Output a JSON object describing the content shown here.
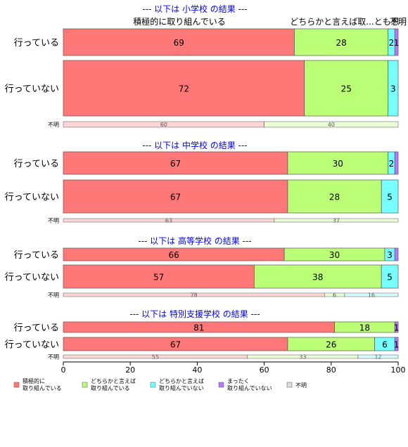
{
  "chart_data": {
    "type": "bar",
    "orientation": "horizontal",
    "stacked": true,
    "xlim": [
      0,
      100
    ],
    "x_ticks": [
      "0",
      "20",
      "40",
      "60",
      "80",
      "100"
    ],
    "top_labels": [
      {
        "text": "積極的に取り組んでいる"
      },
      {
        "text": "どちらかと言えば取...とも思"
      },
      {
        "text": "不明"
      }
    ],
    "legend_position": "bottom",
    "legend": [
      {
        "label": "積極的に\n取り組んでいる",
        "color": "#ff7777"
      },
      {
        "label": "どちらかと言えば\n取り組んでいる",
        "color": "#bbff77"
      },
      {
        "label": "どちらかと言えば\n取り組んでいない",
        "color": "#77ffff"
      },
      {
        "label": "まったく\n取り組んでいない",
        "color": "#bb77ff"
      },
      {
        "label": "不明",
        "color": "#dddddd"
      }
    ],
    "groups": [
      {
        "title": "--- 以下は 小学校 の結果 ---",
        "rows": [
          {
            "category": "行っている",
            "values": [
              69,
              28,
              2,
              1,
              0
            ],
            "labels": [
              "69",
              "28",
              "2",
              "1",
              ""
            ]
          },
          {
            "category": "行っていない",
            "values": [
              72,
              25,
              3,
              0,
              0
            ],
            "labels": [
              "72",
              "25",
              "3",
              "",
              ""
            ]
          },
          {
            "category": "不明",
            "values": [
              60,
              40,
              0,
              0,
              0
            ],
            "labels": [
              "60",
              "40",
              "",
              "",
              ""
            ]
          }
        ]
      },
      {
        "title": "--- 以下は 中学校 の結果 ---",
        "rows": [
          {
            "category": "行っている",
            "values": [
              67,
              30,
              2,
              1,
              0
            ],
            "labels": [
              "67",
              "30",
              "2",
              "",
              ""
            ]
          },
          {
            "category": "行っていない",
            "values": [
              67,
              28,
              5,
              0,
              0
            ],
            "labels": [
              "67",
              "28",
              "5",
              "",
              ""
            ]
          },
          {
            "category": "不明",
            "values": [
              63,
              37,
              0,
              0,
              0
            ],
            "labels": [
              "63",
              "37",
              "",
              "",
              ""
            ]
          }
        ]
      },
      {
        "title": "--- 以下は 高等学校 の結果 ---",
        "rows": [
          {
            "category": "行っている",
            "values": [
              66,
              30,
              3,
              1,
              0
            ],
            "labels": [
              "66",
              "30",
              "3",
              "",
              ""
            ]
          },
          {
            "category": "行っていない",
            "values": [
              57,
              38,
              5,
              0,
              0
            ],
            "labels": [
              "57",
              "38",
              "5",
              "",
              ""
            ]
          },
          {
            "category": "不明",
            "values": [
              78,
              6,
              16,
              0,
              0
            ],
            "labels": [
              "78",
              "6",
              "16",
              "",
              ""
            ]
          }
        ]
      },
      {
        "title": "--- 以下は 特別支援学校 の結果 ---",
        "rows": [
          {
            "category": "行っている",
            "values": [
              81,
              18,
              0,
              1,
              0
            ],
            "labels": [
              "81",
              "18",
              "",
              "1",
              ""
            ]
          },
          {
            "category": "行っていない",
            "values": [
              67,
              26,
              6,
              1,
              0
            ],
            "labels": [
              "67",
              "26",
              "6",
              "1",
              ""
            ]
          },
          {
            "category": "不明",
            "values": [
              55,
              33,
              12,
              0,
              0
            ],
            "labels": [
              "55",
              "33",
              "12",
              "",
              ""
            ]
          }
        ]
      }
    ]
  }
}
